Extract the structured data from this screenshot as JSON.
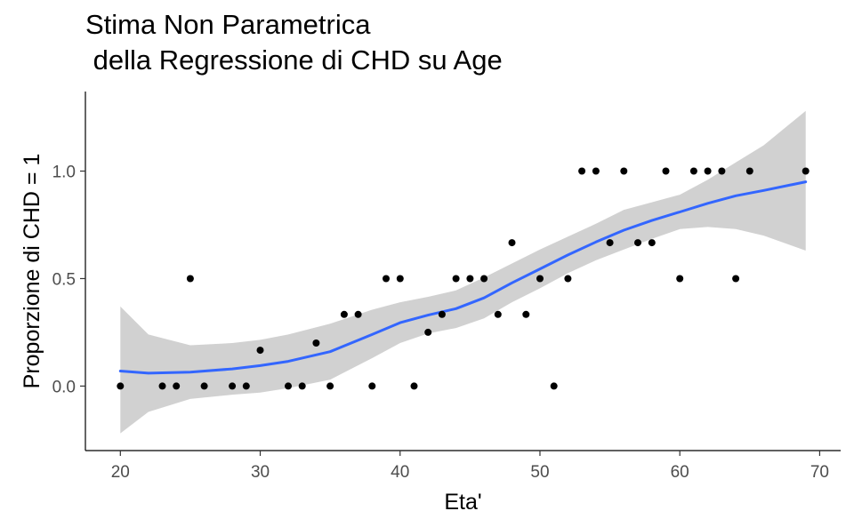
{
  "chart_data": {
    "type": "scatter",
    "title_line1": "Stima Non Parametrica",
    "title_line2": " della Regressione di CHD su Age",
    "xlabel": "Eta'",
    "ylabel": "Proporzione di CHD = 1",
    "xlim": [
      17.5,
      71.5
    ],
    "ylim": [
      -0.3,
      1.37
    ],
    "xticks": [
      20,
      30,
      40,
      50,
      60,
      70
    ],
    "xtick_labels": [
      "20",
      "30",
      "40",
      "50",
      "60",
      "70"
    ],
    "yticks": [
      0,
      0.5,
      1
    ],
    "ytick_labels": [
      "0.0",
      "0.5",
      "1.0"
    ],
    "grid": false,
    "legend": "none",
    "colors": {
      "points": "#000000",
      "smooth_line": "#3366FF",
      "confidence_band": "#999999"
    },
    "points": {
      "x": [
        20,
        23,
        24,
        25,
        26,
        28,
        29,
        30,
        32,
        33,
        34,
        35,
        36,
        37,
        38,
        39,
        40,
        41,
        42,
        43,
        44,
        45,
        46,
        47,
        48,
        49,
        50,
        51,
        52,
        53,
        54,
        55,
        56,
        57,
        58,
        59,
        60,
        61,
        62,
        63,
        64,
        65,
        69
      ],
      "y": [
        0,
        0,
        0,
        0.5,
        0,
        0,
        0,
        0.1667,
        0,
        0,
        0.2,
        0,
        0.3333,
        0.3333,
        0,
        0.5,
        0.5,
        0,
        0.25,
        0.3333,
        0.5,
        0.5,
        0.5,
        0.3333,
        0.6667,
        0.3333,
        0.5,
        0,
        0.5,
        1,
        1,
        0.6667,
        1,
        0.6667,
        0.6667,
        1,
        0.5,
        1,
        1,
        1,
        0.5,
        1,
        1
      ]
    },
    "smooth": {
      "x": [
        20,
        22,
        25,
        28,
        30,
        32,
        35,
        38,
        40,
        42,
        44,
        46,
        48,
        50,
        52,
        54,
        56,
        58,
        60,
        62,
        64,
        66,
        69
      ],
      "y": [
        0.07,
        0.06,
        0.065,
        0.08,
        0.095,
        0.115,
        0.16,
        0.24,
        0.295,
        0.33,
        0.36,
        0.41,
        0.48,
        0.545,
        0.61,
        0.67,
        0.725,
        0.77,
        0.81,
        0.85,
        0.885,
        0.91,
        0.95
      ],
      "lower": [
        -0.22,
        -0.12,
        -0.06,
        -0.04,
        -0.03,
        -0.01,
        0.03,
        0.13,
        0.2,
        0.245,
        0.27,
        0.315,
        0.39,
        0.455,
        0.525,
        0.585,
        0.635,
        0.685,
        0.73,
        0.74,
        0.73,
        0.7,
        0.63
      ],
      "upper": [
        0.37,
        0.24,
        0.19,
        0.2,
        0.215,
        0.24,
        0.29,
        0.355,
        0.39,
        0.415,
        0.445,
        0.505,
        0.57,
        0.635,
        0.695,
        0.755,
        0.82,
        0.855,
        0.89,
        0.96,
        1.04,
        1.12,
        1.28
      ]
    }
  }
}
